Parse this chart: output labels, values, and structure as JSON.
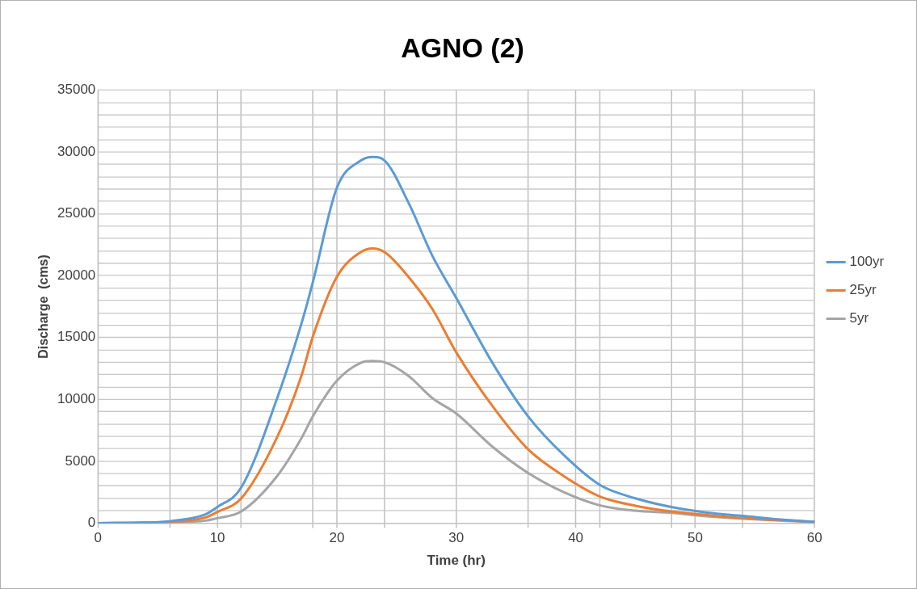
{
  "chart_data": {
    "type": "line",
    "title": "AGNO (2)",
    "xlabel": "Time (hr)",
    "ylabel": "Discharge  (cms)",
    "x": [
      0,
      3,
      6,
      9,
      10,
      12,
      15,
      17,
      18,
      20,
      22,
      23,
      24,
      26,
      28,
      30,
      33,
      36,
      39,
      42,
      45,
      48,
      51,
      54,
      57,
      60
    ],
    "series": [
      {
        "name": "100yr",
        "color": "#5b9bd5",
        "values": [
          0,
          30,
          150,
          700,
          1300,
          2880,
          10080,
          16000,
          19500,
          27100,
          29300,
          29600,
          29300,
          25900,
          21600,
          18200,
          13000,
          8640,
          5500,
          3100,
          2000,
          1300,
          850,
          580,
          300,
          100
        ]
      },
      {
        "name": "25yr",
        "color": "#ed7d31",
        "values": [
          0,
          null,
          100,
          450,
          900,
          2000,
          6940,
          11800,
          15100,
          19900,
          21900,
          22200,
          21900,
          19900,
          17300,
          13800,
          9500,
          5980,
          3800,
          2160,
          1400,
          940,
          650,
          400,
          250,
          100
        ]
      },
      {
        "name": "5yr",
        "color": "#a5a5a5",
        "values": [
          0,
          10,
          50,
          200,
          400,
          940,
          3800,
          6800,
          8640,
          11500,
          12950,
          13100,
          13000,
          11900,
          10100,
          8860,
          6200,
          4060,
          2500,
          1440,
          1000,
          820,
          550,
          350,
          200,
          100
        ]
      }
    ],
    "xlim": [
      0,
      60
    ],
    "xticks": [
      0,
      {
        "value": 6,
        "label": null
      },
      10,
      {
        "value": 12,
        "label": null
      },
      {
        "value": 18,
        "label": null
      },
      20,
      {
        "value": 24,
        "label": null
      },
      30,
      {
        "value": 36,
        "label": null
      },
      40,
      {
        "value": 42,
        "label": null
      },
      {
        "value": 48,
        "label": null
      },
      50,
      {
        "value": 54,
        "label": null
      },
      60
    ],
    "ylim": [
      0,
      35000
    ],
    "yticks": [
      0,
      {
        "value": 1000,
        "label": null
      },
      {
        "value": 2000,
        "label": null
      },
      {
        "value": 3000,
        "label": null
      },
      {
        "value": 4000,
        "label": null
      },
      5000,
      {
        "value": 6000,
        "label": null
      },
      {
        "value": 7000,
        "label": null
      },
      {
        "value": 8000,
        "label": null
      },
      {
        "value": 9000,
        "label": null
      },
      10000,
      {
        "value": 11000,
        "label": null
      },
      {
        "value": 12000,
        "label": null
      },
      {
        "value": 13000,
        "label": null
      },
      {
        "value": 14000,
        "label": null
      },
      15000,
      {
        "value": 16000,
        "label": null
      },
      {
        "value": 17000,
        "label": null
      },
      {
        "value": 18000,
        "label": null
      },
      {
        "value": 19000,
        "label": null
      },
      20000,
      {
        "value": 21000,
        "label": null
      },
      {
        "value": 22000,
        "label": null
      },
      {
        "value": 23000,
        "label": null
      },
      {
        "value": 24000,
        "label": null
      },
      25000,
      {
        "value": 26000,
        "label": null
      },
      {
        "value": 27000,
        "label": null
      },
      {
        "value": 28000,
        "label": null
      },
      {
        "value": 29000,
        "label": null
      },
      30000,
      {
        "value": 31000,
        "label": null
      },
      {
        "value": 32000,
        "label": null
      },
      {
        "value": 33000,
        "label": null
      },
      {
        "value": 34000,
        "label": null
      },
      35000
    ],
    "grid": true,
    "legend": "right",
    "marker": "none",
    "line_style": "solid"
  }
}
